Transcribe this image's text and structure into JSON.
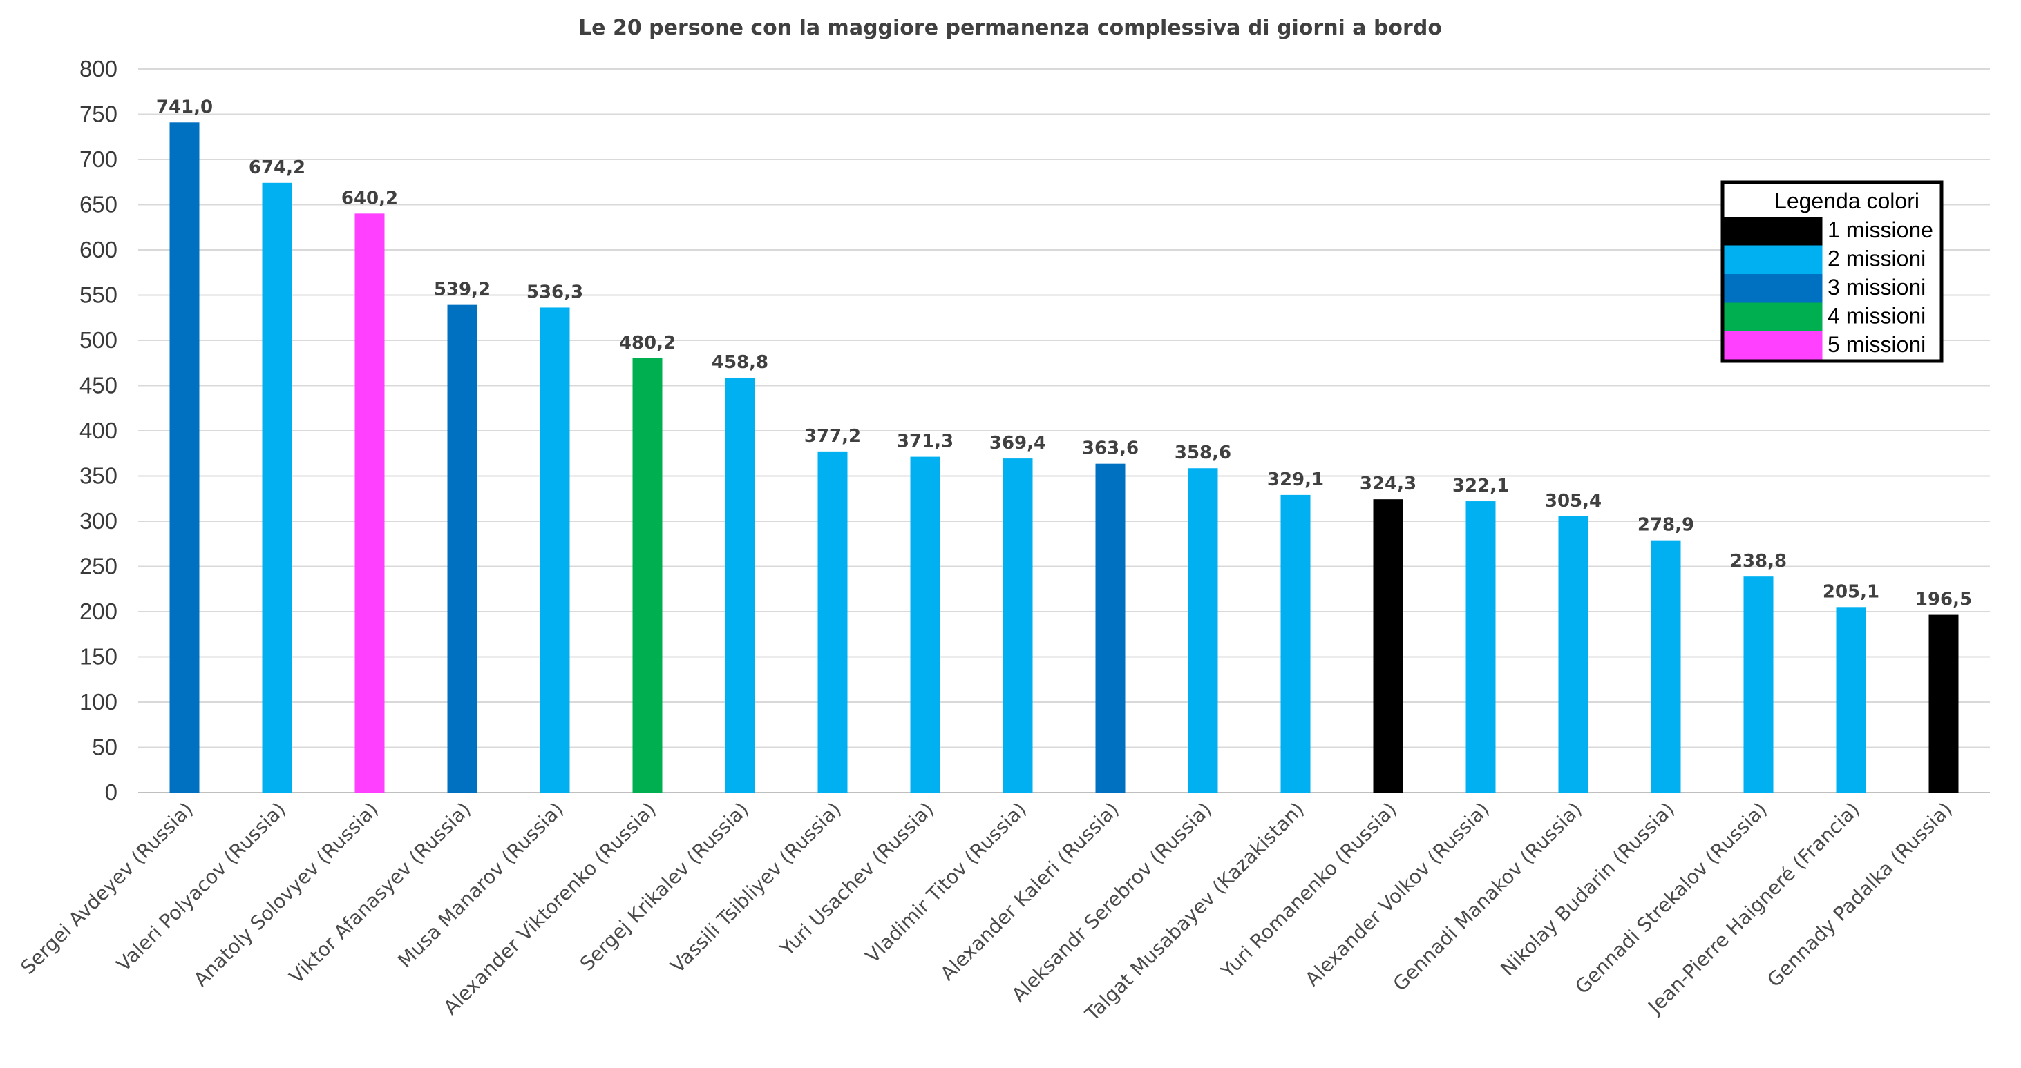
{
  "chart_data": {
    "type": "bar",
    "title": "Le 20 persone con la maggiore permanenza complessiva di giorni a bordo",
    "xlabel": "",
    "ylabel": "",
    "ylim": [
      0,
      800
    ],
    "ytick_step": 50,
    "grid": true,
    "legend_position": "top-right",
    "categories": [
      "Sergei Avdeyev (Russia)",
      "Valeri Polyacov (Russia)",
      "Anatoly Solovyev (Russia)",
      "Viktor Afanasyev (Russia)",
      "Musa Manarov (Russia)",
      "Alexander Viktorenko (Russia)",
      "Sergej Krikalev (Russia)",
      "Vassili Tsibliyev (Russia)",
      "Yuri Usachev (Russia)",
      "Vladimir Titov (Russia)",
      "Alexander Kaleri (Russia)",
      "Aleksandr Serebrov (Russia)",
      "Talgat Musabayev (Kazakistan)",
      "Yuri Romanenko (Russia)",
      "Alexander Volkov (Russia)",
      "Gennadi Manakov (Russia)",
      "Nikolay Budarin (Russia)",
      "Gennadi Strekalov (Russia)",
      "Jean-Pierre Haigneré (Francia)",
      "Gennady Padalka (Russia)"
    ],
    "values": [
      741.0,
      674.2,
      640.2,
      539.2,
      536.3,
      480.2,
      458.8,
      377.2,
      371.3,
      369.4,
      363.6,
      358.6,
      329.1,
      324.3,
      322.1,
      305.4,
      278.9,
      238.8,
      205.1,
      196.5
    ],
    "value_labels": [
      "741,0",
      "674,2",
      "640,2",
      "539,2",
      "536,3",
      "480,2",
      "458,8",
      "377,2",
      "371,3",
      "369,4",
      "363,6",
      "358,6",
      "329,1",
      "324,3",
      "322,1",
      "305,4",
      "278,9",
      "238,8",
      "205,1",
      "196,5"
    ],
    "missions": [
      3,
      2,
      5,
      3,
      2,
      4,
      2,
      2,
      2,
      2,
      3,
      2,
      2,
      1,
      2,
      2,
      2,
      2,
      2,
      1
    ],
    "legend": {
      "title": "Legenda colori",
      "entries": [
        {
          "missions": 1,
          "label": "1 missione",
          "color": "#000000"
        },
        {
          "missions": 2,
          "label": "2 missioni",
          "color": "#00B0F0"
        },
        {
          "missions": 3,
          "label": "3 missioni",
          "color": "#0070C0"
        },
        {
          "missions": 4,
          "label": "4 missioni",
          "color": "#00B050"
        },
        {
          "missions": 5,
          "label": "5 missioni",
          "color": "#FF40FF"
        }
      ]
    }
  }
}
